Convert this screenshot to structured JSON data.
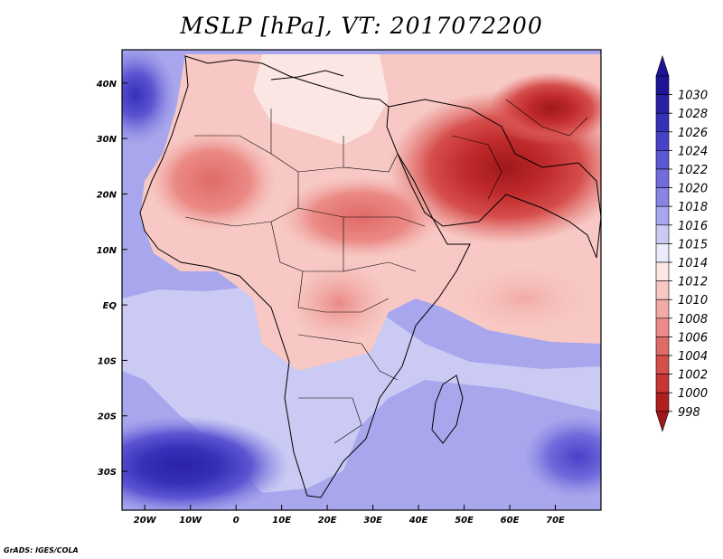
{
  "title": "MSLP [hPa], VT: 2017072200",
  "credit": "GrADS: IGES/COLA",
  "map": {
    "lon_range": [
      -25,
      80
    ],
    "lat_range": [
      -37,
      46
    ],
    "x_ticks": [
      {
        "lon": -20,
        "label": "20W"
      },
      {
        "lon": -10,
        "label": "10W"
      },
      {
        "lon": 0,
        "label": "0"
      },
      {
        "lon": 10,
        "label": "10E"
      },
      {
        "lon": 20,
        "label": "20E"
      },
      {
        "lon": 30,
        "label": "30E"
      },
      {
        "lon": 40,
        "label": "40E"
      },
      {
        "lon": 50,
        "label": "50E"
      },
      {
        "lon": 60,
        "label": "60E"
      },
      {
        "lon": 70,
        "label": "70E"
      }
    ],
    "y_ticks": [
      {
        "lat": 40,
        "label": "40N"
      },
      {
        "lat": 30,
        "label": "30N"
      },
      {
        "lat": 20,
        "label": "20N"
      },
      {
        "lat": 10,
        "label": "10N"
      },
      {
        "lat": 0,
        "label": "EQ"
      },
      {
        "lat": -10,
        "label": "10S"
      },
      {
        "lat": -20,
        "label": "20S"
      },
      {
        "lat": -30,
        "label": "30S"
      }
    ]
  },
  "colorbar": {
    "levels": [
      {
        "label": "1030",
        "color": "#1e1496"
      },
      {
        "label": "1028",
        "color": "#2a22a6"
      },
      {
        "label": "1026",
        "color": "#3430b8"
      },
      {
        "label": "1024",
        "color": "#4840c8"
      },
      {
        "label": "1022",
        "color": "#5c56d2"
      },
      {
        "label": "1020",
        "color": "#716cdc"
      },
      {
        "label": "1018",
        "color": "#8884e4"
      },
      {
        "label": "1016",
        "color": "#a8a6ec"
      },
      {
        "label": "1015",
        "color": "#cacaf4"
      },
      {
        "label": "1014",
        "color": "#ecebfa"
      },
      {
        "label": "1012",
        "color": "#fbe6e4"
      },
      {
        "label": "1010",
        "color": "#f7c8c4"
      },
      {
        "label": "1008",
        "color": "#f2aaa6"
      },
      {
        "label": "1006",
        "color": "#eb8a86"
      },
      {
        "label": "1004",
        "color": "#e06a66"
      },
      {
        "label": "1002",
        "color": "#d64e4c"
      },
      {
        "label": "1000",
        "color": "#c93434"
      },
      {
        "label": "998",
        "color": "#b01e20"
      }
    ],
    "top_triangle_color": "#1e1496",
    "bottom_triangle_color": "#a0181a"
  },
  "field": {
    "ocean_color": "#a8a6ec",
    "land_color": "#f7c8c4"
  }
}
